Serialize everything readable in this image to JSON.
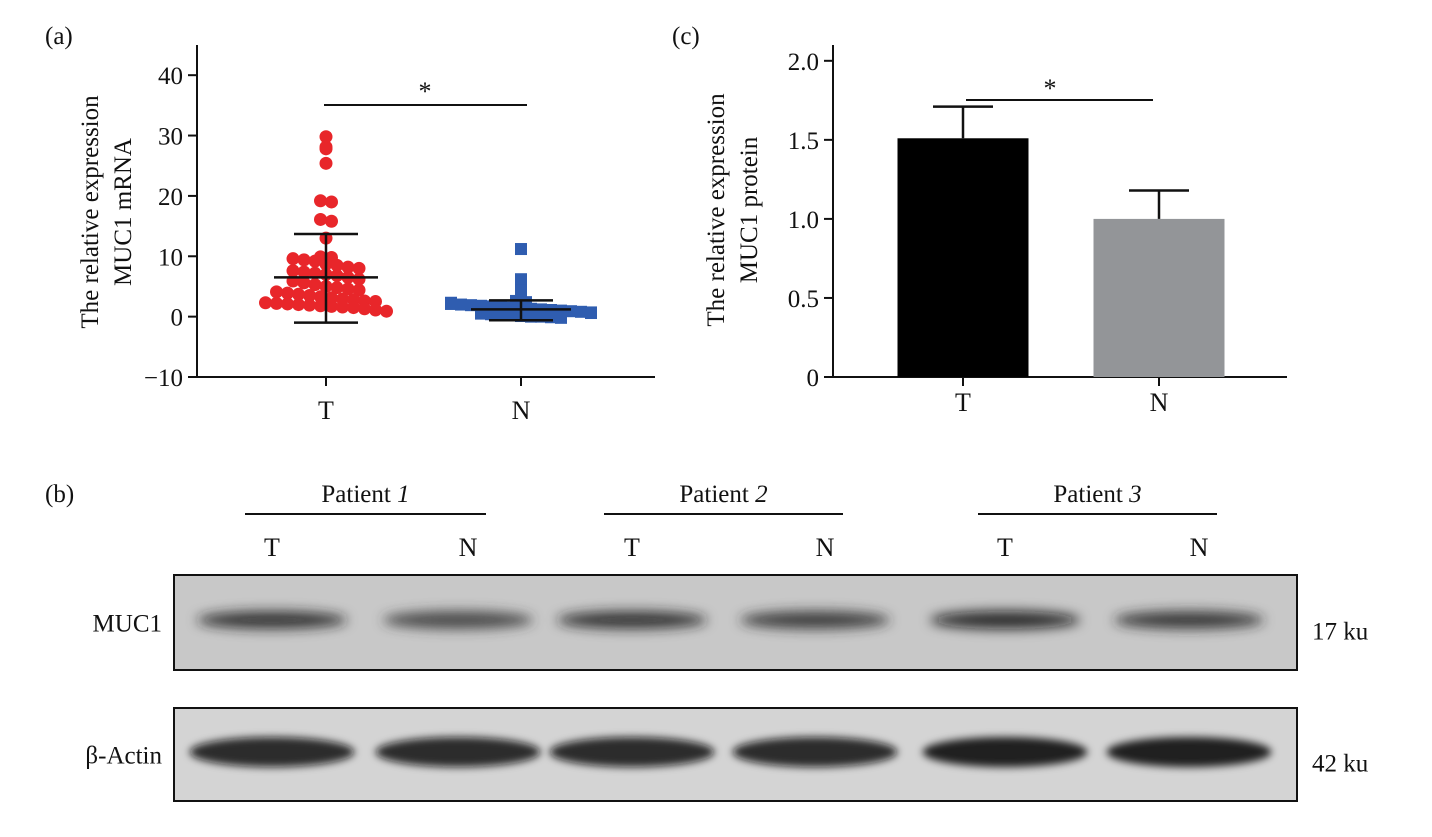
{
  "panels": {
    "a": {
      "label": "(a)",
      "ylabel_line1": "The relative expression",
      "ylabel_line2": "MUC1 mRNA",
      "significance": "*",
      "colors": {
        "T": "#e8262a",
        "N": "#2f5db0"
      }
    },
    "c": {
      "label": "(c)",
      "ylabel_line1": "The relative expression",
      "ylabel_line2": "MUC1 protein",
      "significance": "*",
      "colors": {
        "T": "#000000",
        "N": "#939598"
      }
    },
    "b": {
      "label": "(b)",
      "patients": [
        {
          "label": "Patient ",
          "num": "1",
          "lanes": [
            "T",
            "N"
          ]
        },
        {
          "label": "Patient ",
          "num": "2",
          "lanes": [
            "T",
            "N"
          ]
        },
        {
          "label": "Patient ",
          "num": "3",
          "lanes": [
            "T",
            "N"
          ]
        }
      ],
      "blots": [
        {
          "name": "MUC1",
          "size": "17 ku",
          "intensity": [
            0.8,
            0.62,
            0.78,
            0.7,
            0.9,
            0.72
          ]
        },
        {
          "name": "β-Actin",
          "size": "42 ku",
          "intensity": [
            0.92,
            0.9,
            0.93,
            0.9,
            1.0,
            0.98
          ]
        }
      ]
    }
  },
  "chart_data": [
    {
      "type": "scatter",
      "panel": "a",
      "categories": [
        "T",
        "N"
      ],
      "ylim": [
        -10,
        45
      ],
      "yticks": [
        -10,
        0,
        10,
        20,
        30,
        40
      ],
      "ylabel": "The relative expression MUC1 mRNA",
      "series": [
        {
          "category": "T",
          "marker": "circle",
          "mean": 6.5,
          "sd_low": -1,
          "sd_high": 13.7,
          "points": [
            29.8,
            28.1,
            27.8,
            25.4,
            19.2,
            19.0,
            16.1,
            15.8,
            13.0,
            9.9,
            9.8,
            9.6,
            9.4,
            9.2,
            8.7,
            8.5,
            8.2,
            8.0,
            7.6,
            7.4,
            7.2,
            7.0,
            6.8,
            6.5,
            6.2,
            5.9,
            5.6,
            5.3,
            5.0,
            4.8,
            4.6,
            4.4,
            4.1,
            3.9,
            3.7,
            3.5,
            3.3,
            3.1,
            2.9,
            2.8,
            2.6,
            2.5,
            2.3,
            2.2,
            2.1,
            2.0,
            1.9,
            1.8,
            1.7,
            1.6,
            1.5,
            1.3,
            1.1,
            0.9
          ]
        },
        {
          "category": "N",
          "marker": "square",
          "mean": 1.2,
          "sd_low": -0.6,
          "sd_high": 2.7,
          "points": [
            11.2,
            6.2,
            4.3,
            2.6,
            2.4,
            2.3,
            2.1,
            2.0,
            1.9,
            1.8,
            1.7,
            1.6,
            1.5,
            1.4,
            1.3,
            1.2,
            1.1,
            1.0,
            0.9,
            0.8,
            0.7,
            0.6,
            0.5,
            0.4,
            0.3,
            0.2,
            0.1,
            0.0,
            0.0,
            -0.1,
            -0.2
          ]
        }
      ]
    },
    {
      "type": "bar",
      "panel": "c",
      "categories": [
        "T",
        "N"
      ],
      "values": [
        1.51,
        1.0
      ],
      "errors": [
        0.2,
        0.18
      ],
      "ylim": [
        0,
        2.1
      ],
      "yticks": [
        "0",
        "0.5",
        "1.0",
        "1.5",
        "2.0"
      ],
      "ytick_values": [
        0,
        0.5,
        1.0,
        1.5,
        2.0
      ],
      "ylabel": "The relative expression MUC1 protein"
    }
  ]
}
